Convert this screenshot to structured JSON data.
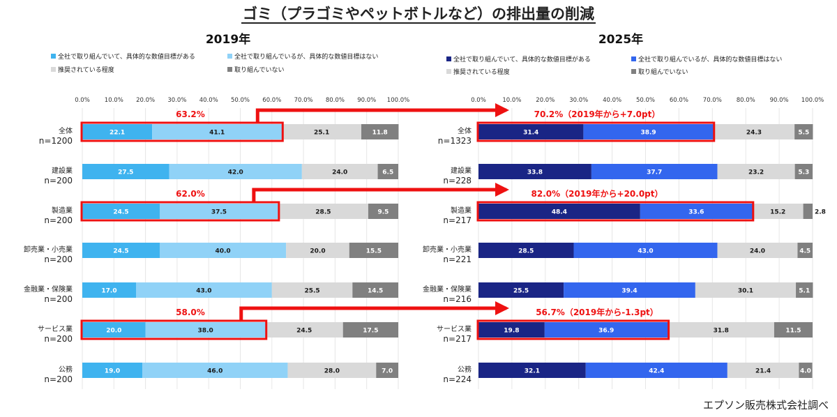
{
  "title": "ゴミ（プラゴミやペットボトルなど）の排出量の削減",
  "source": "エプソン販売株式会社調べ",
  "chart_data": [
    {
      "type": "bar",
      "stacked": true,
      "orientation": "horizontal",
      "title": "2019年",
      "xlim": [
        0,
        100
      ],
      "ticks": [
        "0.0%",
        "10.0%",
        "20.0%",
        "30.0%",
        "40.0%",
        "50.0%",
        "60.0%",
        "70.0%",
        "80.0%",
        "90.0%",
        "100.0%"
      ],
      "legend": [
        "全社で取り組んでいて、具体的な数値目標がある",
        "全社で取り組んでいるが、具体的な数値目標はない",
        "推奨されている程度",
        "取り組んでいない"
      ],
      "colors": [
        "#3fb3ef",
        "#90d2f7",
        "#d9d9d9",
        "#808080"
      ],
      "categories": [
        "全体",
        "建設業",
        "製造業",
        "卸売業・小売業",
        "金融業・保険業",
        "サービス業",
        "公務"
      ],
      "n_labels": [
        "n=1200",
        "n=200",
        "n=200",
        "n=200",
        "n=200",
        "n=200",
        "n=200"
      ],
      "series": [
        {
          "values": [
            22.1,
            27.5,
            24.5,
            24.5,
            17.0,
            20.0,
            19.0
          ]
        },
        {
          "values": [
            41.1,
            42.0,
            37.5,
            40.0,
            43.0,
            38.0,
            46.0
          ]
        },
        {
          "values": [
            25.1,
            24.0,
            28.5,
            20.0,
            25.5,
            24.5,
            28.0
          ]
        },
        {
          "values": [
            11.8,
            6.5,
            9.5,
            15.5,
            14.5,
            17.5,
            7.0
          ]
        }
      ],
      "highlights": [
        {
          "row": 0,
          "label": "63.2%"
        },
        {
          "row": 2,
          "label": "62.0%"
        },
        {
          "row": 5,
          "label": "58.0%"
        }
      ]
    },
    {
      "type": "bar",
      "stacked": true,
      "orientation": "horizontal",
      "title": "2025年",
      "xlim": [
        0,
        100
      ],
      "ticks": [
        "0.0%",
        "10.0%",
        "20.0%",
        "30.0%",
        "40.0%",
        "50.0%",
        "60.0%",
        "70.0%",
        "80.0%",
        "90.0%",
        "100.0%"
      ],
      "legend": [
        "全社で取り組んでいて、具体的な数値目標がある",
        "全社で取り組んでいるが、具体的な数値目標はない",
        "推奨されている程度",
        "取り組んでいない"
      ],
      "colors": [
        "#1a2585",
        "#3366ee",
        "#d9d9d9",
        "#808080"
      ],
      "categories": [
        "全体",
        "建設業",
        "製造業",
        "卸売業・小売業",
        "金融業・保険業",
        "サービス業",
        "公務"
      ],
      "n_labels": [
        "n=1323",
        "n=228",
        "n=217",
        "n=221",
        "n=216",
        "n=217",
        "n=224"
      ],
      "series": [
        {
          "values": [
            31.4,
            33.8,
            48.4,
            28.5,
            25.5,
            19.8,
            32.1
          ]
        },
        {
          "values": [
            38.9,
            37.7,
            33.6,
            43.0,
            39.4,
            36.9,
            42.4
          ]
        },
        {
          "values": [
            24.3,
            23.2,
            15.2,
            24.0,
            30.1,
            31.8,
            21.4
          ]
        },
        {
          "values": [
            5.5,
            5.3,
            2.8,
            4.5,
            5.1,
            11.5,
            4.0
          ]
        }
      ],
      "highlights": [
        {
          "row": 0,
          "label": "70.2%（2019年から+7.0pt）"
        },
        {
          "row": 2,
          "label": "82.0%（2019年から+20.0pt）"
        },
        {
          "row": 5,
          "label": "56.7%（2019年から-1.3pt）"
        }
      ]
    }
  ]
}
